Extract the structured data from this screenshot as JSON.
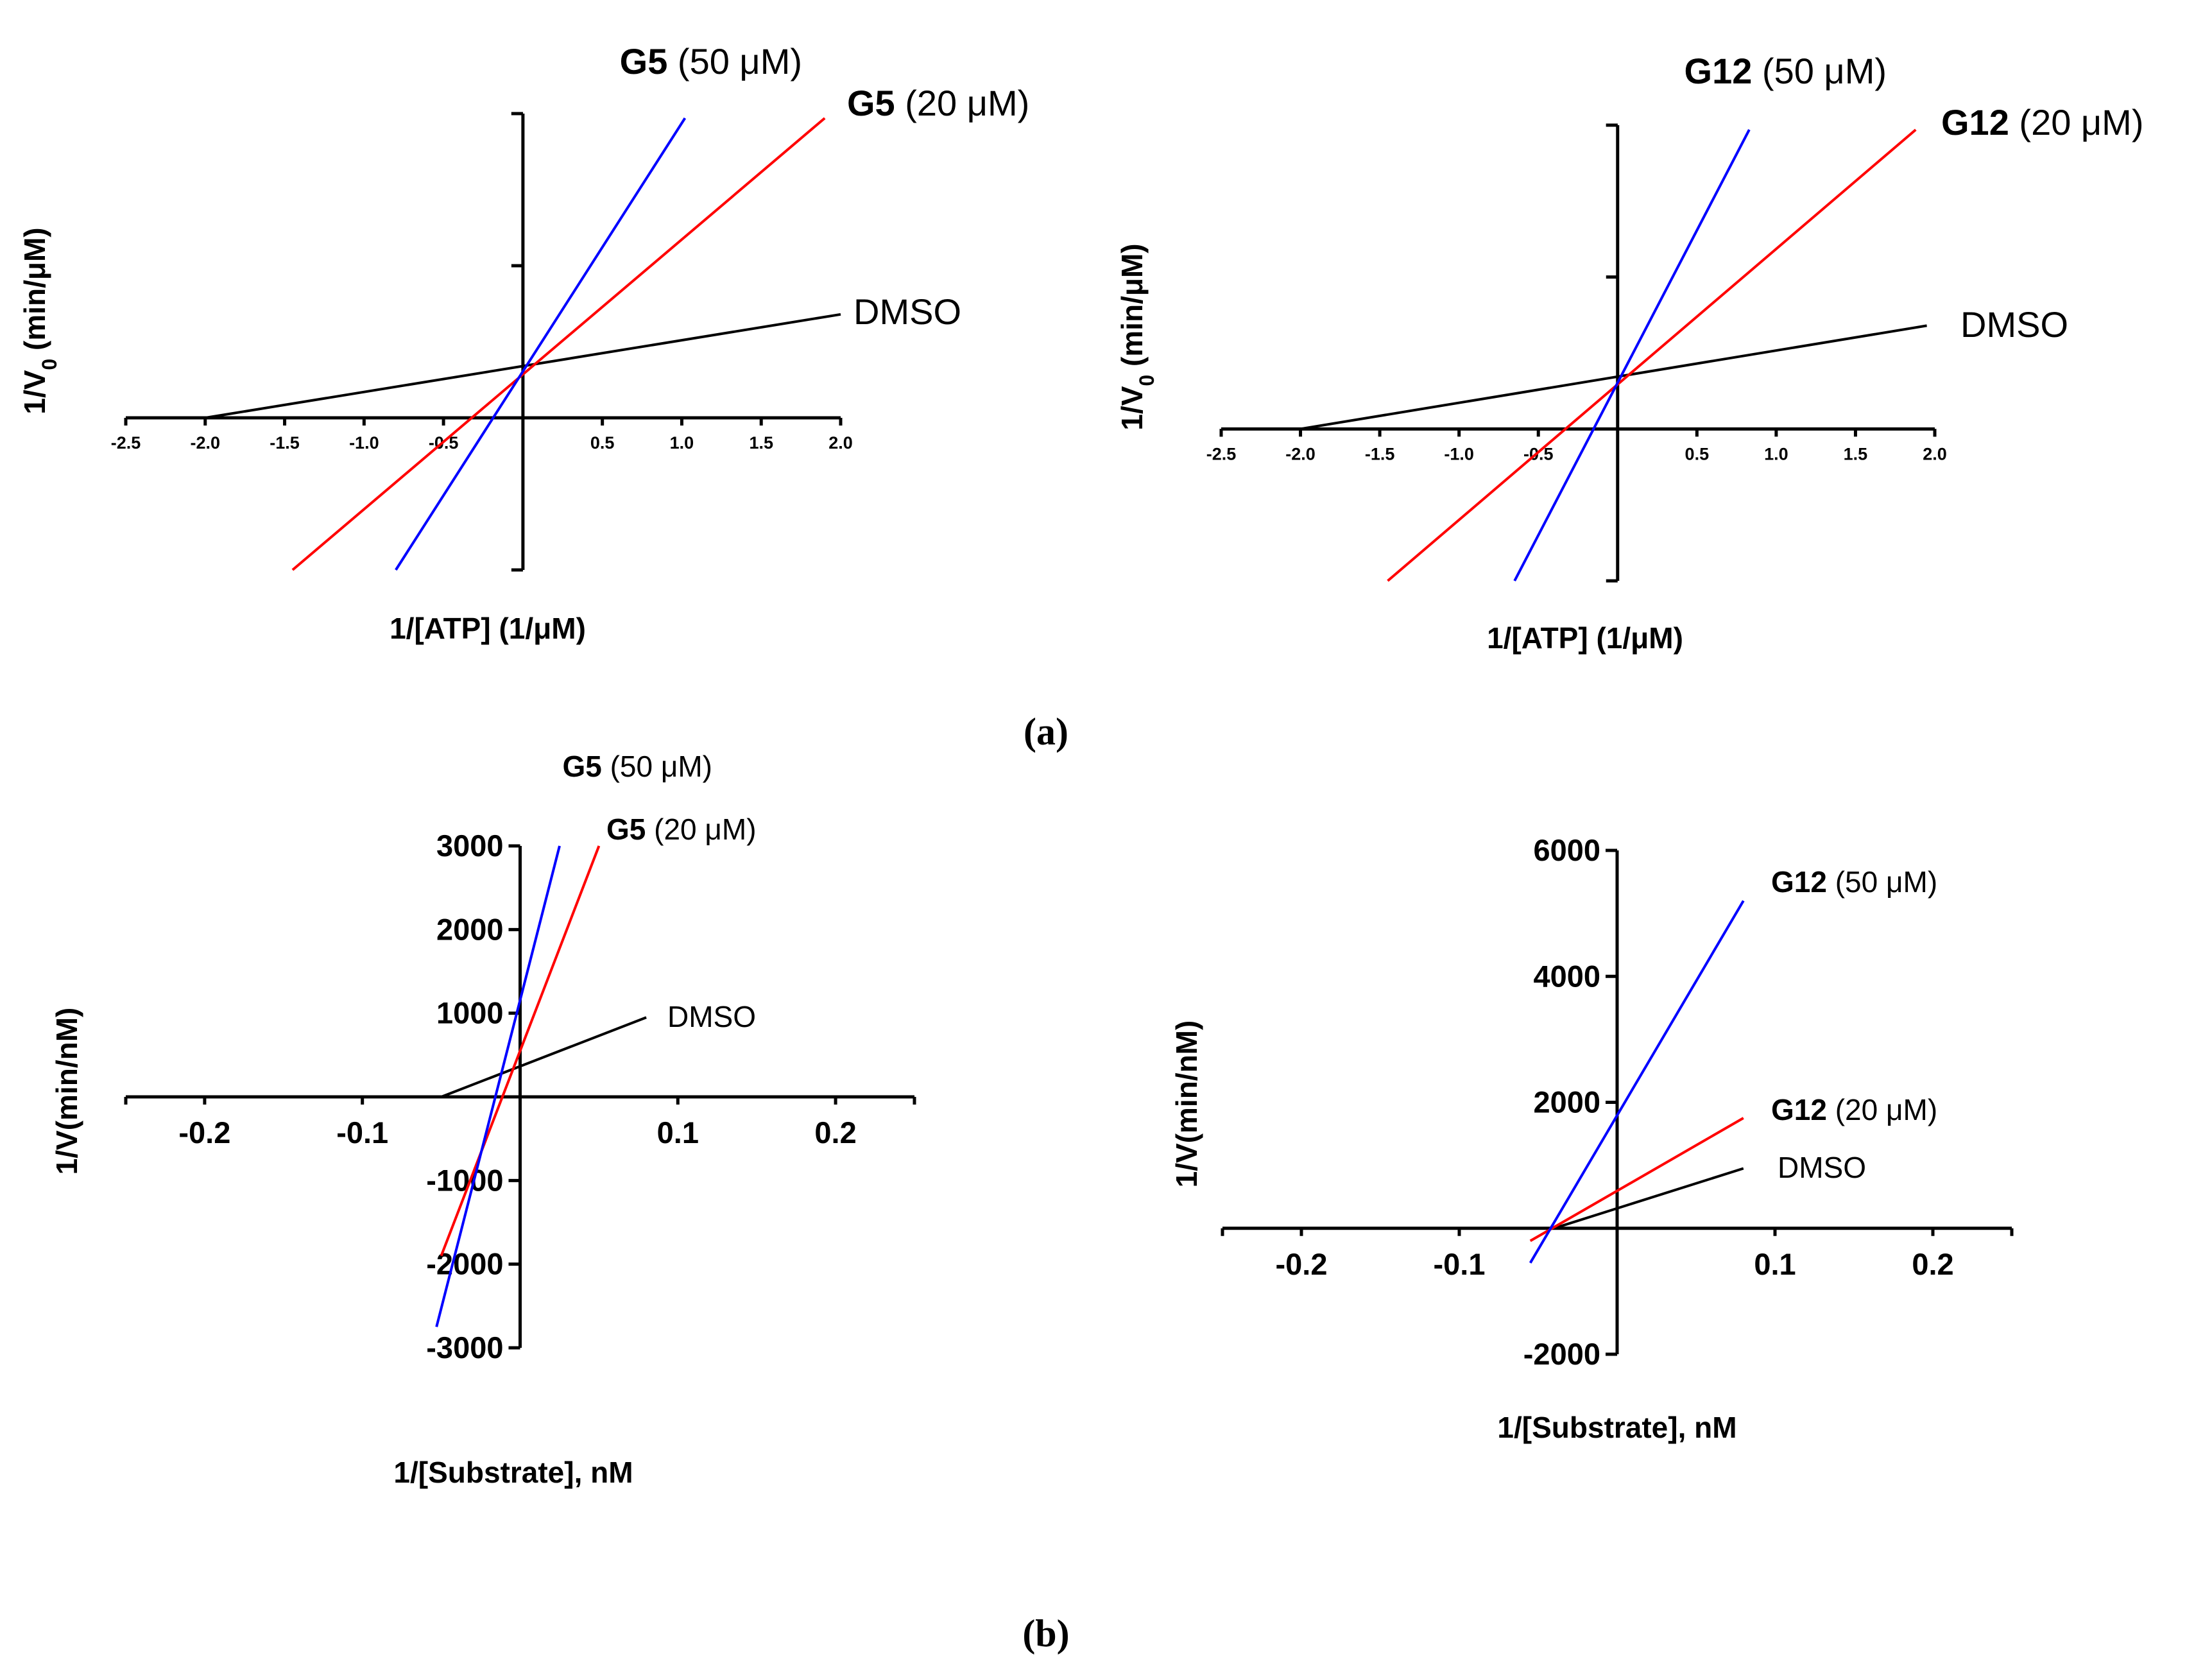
{
  "figure": {
    "panel_a_label": "(a)",
    "panel_b_label": "(b)"
  },
  "colors": {
    "DMSO": "#000000",
    "20uM": "#ff0000",
    "50uM": "#0000ff",
    "axis": "#000000"
  },
  "chart_data": [
    {
      "id": "a1",
      "panel": "(a)",
      "type": "line",
      "xlabel": "1/[ATP] (1/μM)",
      "ylabel": "1/V0 (min/μM)",
      "xlim": [
        -2.5,
        2.0
      ],
      "ylim": [
        -1.0,
        2.0
      ],
      "xticks": [
        -2.5,
        -2.0,
        -1.5,
        -1.0,
        -0.5,
        0.5,
        1.0,
        1.5,
        2.0
      ],
      "xtick_labels": [
        "-2.5",
        "-2.0",
        "-1.5",
        "-1.0",
        "-0.5",
        "0.5",
        "1.0",
        "1.5",
        "2.0"
      ],
      "yticks": [
        1.0,
        2.0
      ],
      "ytick_labels": [],
      "series": [
        {
          "name": "DMSO",
          "label_bold": "",
          "label_rest": "DMSO",
          "color": "#000000",
          "x": [
            -2.0,
            2.0
          ],
          "y": [
            0.0,
            0.68
          ]
        },
        {
          "name": "G5 (20 μM)",
          "label_bold": "G5",
          "label_rest": " (20 μM)",
          "color": "#ff0000",
          "x": [
            -1.45,
            1.9
          ],
          "y": [
            -1.0,
            1.97
          ]
        },
        {
          "name": "G5 (50 μM)",
          "label_bold": "G5",
          "label_rest": " (50 μM)",
          "color": "#0000ff",
          "x": [
            -0.8,
            1.02
          ],
          "y": [
            -1.0,
            1.97
          ]
        }
      ]
    },
    {
      "id": "a2",
      "panel": "(a)",
      "type": "line",
      "xlabel": "1/[ATP] (1/μM)",
      "ylabel": "1/V0 (min/μM)",
      "xlim": [
        -2.5,
        2.0
      ],
      "ylim": [
        -1.0,
        2.0
      ],
      "xticks": [
        -2.5,
        -2.0,
        -1.5,
        -1.0,
        -0.5,
        0.5,
        1.0,
        1.5,
        2.0
      ],
      "xtick_labels": [
        "-2.5",
        "-2.0",
        "-1.5",
        "-1.0",
        "-0.5",
        "0.5",
        "1.0",
        "1.5",
        "2.0"
      ],
      "yticks": [
        1.0,
        2.0
      ],
      "ytick_labels": [],
      "series": [
        {
          "name": "DMSO",
          "label_bold": "",
          "label_rest": "DMSO",
          "color": "#000000",
          "x": [
            -2.0,
            1.95
          ],
          "y": [
            0.0,
            0.68
          ]
        },
        {
          "name": "G12 (20 μM)",
          "label_bold": "G12",
          "label_rest": " (20 μM)",
          "color": "#ff0000",
          "x": [
            -1.45,
            1.88
          ],
          "y": [
            -1.0,
            1.97
          ]
        },
        {
          "name": "G12 (50 μM)",
          "label_bold": "G12",
          "label_rest": " (50 μM)",
          "color": "#0000ff",
          "x": [
            -0.65,
            0.83
          ],
          "y": [
            -1.0,
            1.97
          ]
        }
      ]
    },
    {
      "id": "b1",
      "panel": "(b)",
      "type": "line",
      "xlabel": "1/[Substrate], nM",
      "ylabel": "1/V(min/nM)",
      "xlim": [
        -0.25,
        0.25
      ],
      "ylim": [
        -3000,
        3000
      ],
      "xticks": [
        -0.2,
        -0.1,
        0.1,
        0.2
      ],
      "xtick_labels": [
        "-0.2",
        "-0.1",
        "0.1",
        "0.2"
      ],
      "yticks": [
        -3000,
        -2000,
        -1000,
        1000,
        2000,
        3000
      ],
      "ytick_labels": [
        "-3000",
        "-2000",
        "-1000",
        "1000",
        "2000",
        "3000"
      ],
      "series": [
        {
          "name": "DMSO",
          "label_bold": "",
          "label_rest": "DMSO",
          "color": "#000000",
          "x": [
            -0.05,
            0.08
          ],
          "y": [
            0,
            950
          ]
        },
        {
          "name": "G5 (20 μM)",
          "label_bold": "G5",
          "label_rest": " (20 μM)",
          "color": "#ff0000",
          "x": [
            -0.05,
            0.05
          ],
          "y": [
            -1900,
            3000
          ]
        },
        {
          "name": "G5 (50 μM)",
          "label_bold": "G5",
          "label_rest": " (50 μM)",
          "color": "#0000ff",
          "x": [
            -0.053,
            0.025
          ],
          "y": [
            -2750,
            3000
          ]
        }
      ]
    },
    {
      "id": "b2",
      "panel": "(b)",
      "type": "line",
      "xlabel": "1/[Substrate], nM",
      "ylabel": "1/V(min/nM)",
      "xlim": [
        -0.25,
        0.25
      ],
      "ylim": [
        -2000,
        6000
      ],
      "xticks": [
        -0.2,
        -0.1,
        0.1,
        0.2
      ],
      "xtick_labels": [
        "-0.2",
        "-0.1",
        "0.1",
        "0.2"
      ],
      "yticks": [
        -2000,
        2000,
        4000,
        6000
      ],
      "ytick_labels": [
        "-2000",
        "2000",
        "4000",
        "6000"
      ],
      "series": [
        {
          "name": "DMSO",
          "label_bold": "",
          "label_rest": "DMSO",
          "color": "#000000",
          "x": [
            -0.04,
            0.08
          ],
          "y": [
            0,
            950
          ]
        },
        {
          "name": "G12 (20 μM)",
          "label_bold": "G12",
          "label_rest": " (20 μM)",
          "color": "#ff0000",
          "x": [
            -0.055,
            0.08
          ],
          "y": [
            -200,
            1750
          ]
        },
        {
          "name": "G12 (50 μM)",
          "label_bold": "G12",
          "label_rest": " (50 μM)",
          "color": "#0000ff",
          "x": [
            -0.055,
            0.08
          ],
          "y": [
            -550,
            5200
          ]
        }
      ]
    }
  ]
}
